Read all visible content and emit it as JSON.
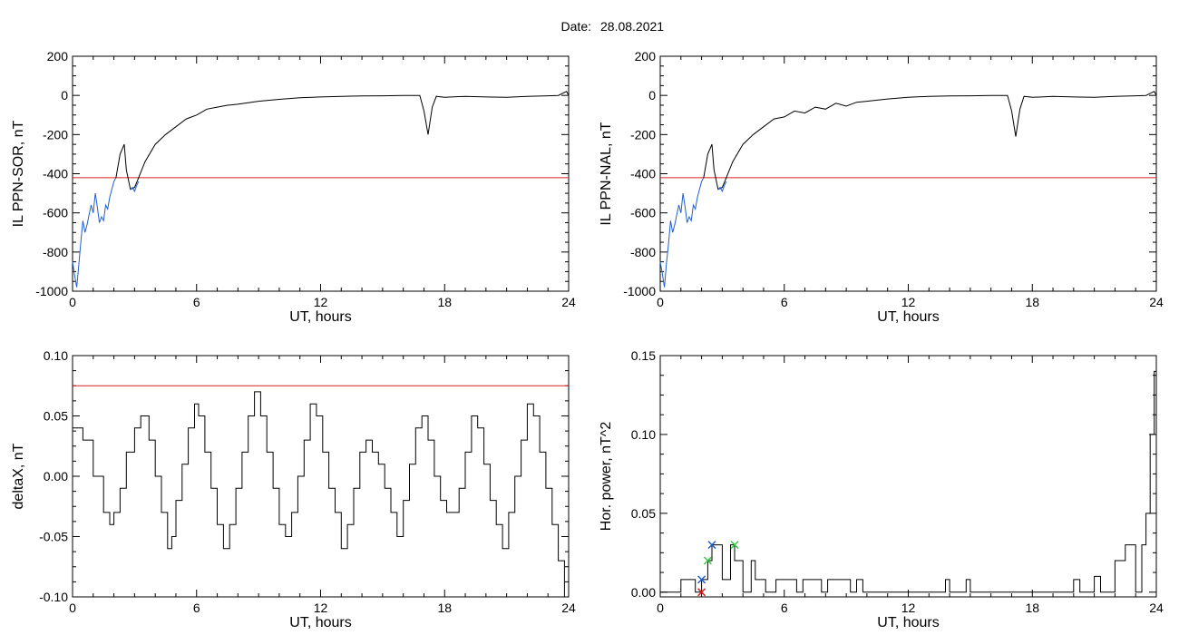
{
  "header": {
    "date_label": "Date:",
    "date_value": "28.08.2021"
  },
  "colors": {
    "trace": "#000000",
    "highlight": "#1f5fd0",
    "threshold": "#d62020",
    "marker_blue": "#1f5fd0",
    "marker_green": "#2ecc40",
    "marker_red": "#d62020"
  },
  "chart_data": [
    {
      "id": "sor",
      "type": "line",
      "ylabel": "IL PPN-SOR, nT",
      "xlabel": "UT, hours",
      "xlim": [
        0,
        24
      ],
      "ylim": [
        -1000,
        200
      ],
      "xticks": [
        0,
        6,
        12,
        18,
        24
      ],
      "yticks": [
        200,
        0,
        -200,
        -400,
        -600,
        -800,
        -1000
      ],
      "ytick_labels": [
        "200",
        "0",
        "-200",
        "-400",
        "-600",
        "-800",
        "-1000"
      ],
      "threshold": -420,
      "series": [
        {
          "color": "blue",
          "x": [
            0,
            0.1,
            0.2,
            0.3,
            0.4,
            0.5,
            0.6,
            0.7,
            0.8,
            0.9,
            1.0,
            1.1,
            1.2,
            1.3,
            1.4,
            1.5,
            1.6,
            1.7,
            1.8,
            1.9,
            2.0,
            2.1
          ],
          "y": [
            -850,
            -920,
            -980,
            -870,
            -750,
            -640,
            -700,
            -660,
            -610,
            -560,
            -600,
            -500,
            -570,
            -650,
            -620,
            -640,
            -560,
            -580,
            -520,
            -480,
            -440,
            -420
          ]
        },
        {
          "color": "black",
          "x": [
            2.1,
            2.3,
            2.5,
            2.6,
            2.8,
            3.0,
            3.2,
            3.5,
            4.0,
            4.5,
            5.0,
            5.5,
            6.0,
            6.5,
            7.0,
            7.5,
            8.0,
            9.0,
            10.0,
            11.0,
            12.0,
            13.0,
            14.0,
            15.0,
            16.0,
            16.8,
            17.0,
            17.2,
            17.4,
            17.6,
            18.0,
            19.0,
            20.0,
            21.0,
            22.0,
            23.0,
            23.5,
            23.9,
            24.0
          ],
          "y": [
            -420,
            -300,
            -250,
            -380,
            -480,
            -470,
            -420,
            -340,
            -250,
            -200,
            -160,
            -120,
            -100,
            -70,
            -60,
            -50,
            -45,
            -30,
            -20,
            -12,
            -8,
            -5,
            -3,
            -2,
            0,
            0,
            -80,
            -200,
            -60,
            -5,
            -10,
            -5,
            -8,
            -10,
            -5,
            -2,
            0,
            20,
            0
          ]
        },
        {
          "color": "blue",
          "x": [
            2.8,
            2.9,
            3.0,
            3.1,
            3.2
          ],
          "y": [
            -480,
            -470,
            -490,
            -460,
            -440
          ]
        }
      ]
    },
    {
      "id": "nal",
      "type": "line",
      "ylabel": "IL PPN-NAL, nT",
      "xlabel": "UT, hours",
      "xlim": [
        0,
        24
      ],
      "ylim": [
        -1000,
        200
      ],
      "xticks": [
        0,
        6,
        12,
        18,
        24
      ],
      "yticks": [
        200,
        0,
        -200,
        -400,
        -600,
        -800,
        -1000
      ],
      "ytick_labels": [
        "200",
        "0",
        "-200",
        "-400",
        "-600",
        "-800",
        "-1000"
      ],
      "threshold": -420,
      "series": [
        {
          "color": "blue",
          "x": [
            0,
            0.1,
            0.2,
            0.3,
            0.4,
            0.5,
            0.6,
            0.7,
            0.8,
            0.9,
            1.0,
            1.1,
            1.2,
            1.3,
            1.4,
            1.5,
            1.6,
            1.7,
            1.8,
            1.9,
            2.0,
            2.1
          ],
          "y": [
            -850,
            -910,
            -980,
            -860,
            -760,
            -640,
            -700,
            -660,
            -610,
            -560,
            -600,
            -500,
            -570,
            -650,
            -620,
            -640,
            -560,
            -580,
            -520,
            -480,
            -440,
            -420
          ]
        },
        {
          "color": "black",
          "x": [
            2.1,
            2.3,
            2.5,
            2.6,
            2.8,
            3.0,
            3.2,
            3.5,
            4.0,
            4.5,
            5.0,
            5.5,
            6.0,
            6.5,
            7.0,
            7.5,
            8.0,
            8.5,
            9.0,
            9.5,
            10.0,
            11.0,
            12.0,
            13.0,
            14.0,
            15.0,
            16.0,
            16.8,
            17.0,
            17.2,
            17.4,
            17.6,
            18.0,
            19.0,
            20.0,
            21.0,
            22.0,
            23.0,
            23.5,
            23.9,
            24.0
          ],
          "y": [
            -420,
            -300,
            -250,
            -380,
            -480,
            -470,
            -420,
            -340,
            -250,
            -200,
            -160,
            -120,
            -110,
            -80,
            -90,
            -60,
            -70,
            -40,
            -55,
            -35,
            -30,
            -18,
            -10,
            -5,
            -3,
            -2,
            0,
            0,
            -80,
            -210,
            -70,
            -5,
            -10,
            -5,
            -8,
            -10,
            -5,
            -2,
            0,
            20,
            0
          ]
        },
        {
          "color": "blue",
          "x": [
            2.8,
            2.9,
            3.0,
            3.1,
            3.2
          ],
          "y": [
            -480,
            -470,
            -490,
            -460,
            -440
          ]
        }
      ]
    },
    {
      "id": "deltax",
      "type": "line",
      "ylabel": "deltaX, nT",
      "xlabel": "UT, hours",
      "xlim": [
        0,
        24
      ],
      "ylim": [
        -0.1,
        0.1
      ],
      "xticks": [
        0,
        6,
        12,
        18,
        24
      ],
      "yticks": [
        0.1,
        0.05,
        0.0,
        -0.05,
        -0.1
      ],
      "ytick_labels": [
        "0.10",
        "0.05",
        "0.00",
        "-0.05",
        "-0.10"
      ],
      "threshold": 0.075,
      "series": [
        {
          "color": "black",
          "step": true,
          "x": [
            0,
            0.5,
            1.0,
            1.5,
            1.8,
            2.0,
            2.3,
            2.6,
            3.0,
            3.3,
            3.7,
            4.0,
            4.3,
            4.6,
            4.8,
            5.0,
            5.3,
            5.6,
            5.9,
            6.1,
            6.4,
            6.7,
            7.0,
            7.3,
            7.6,
            7.9,
            8.2,
            8.5,
            8.8,
            9.1,
            9.4,
            9.7,
            10.0,
            10.3,
            10.6,
            10.9,
            11.2,
            11.5,
            11.8,
            12.1,
            12.4,
            12.7,
            13.0,
            13.3,
            13.6,
            13.9,
            14.2,
            14.5,
            14.8,
            15.1,
            15.4,
            15.7,
            16.0,
            16.3,
            16.6,
            16.9,
            17.2,
            17.5,
            17.8,
            18.1,
            18.4,
            18.7,
            19.0,
            19.3,
            19.6,
            19.9,
            20.2,
            20.5,
            20.8,
            21.1,
            21.4,
            21.7,
            22.0,
            22.3,
            22.6,
            22.9,
            23.2,
            23.5,
            23.8,
            24.0
          ],
          "y": [
            0.04,
            0.03,
            0.0,
            -0.03,
            -0.04,
            -0.03,
            -0.01,
            0.02,
            0.04,
            0.05,
            0.03,
            0.0,
            -0.03,
            -0.06,
            -0.05,
            -0.02,
            0.01,
            0.04,
            0.06,
            0.05,
            0.02,
            -0.01,
            -0.04,
            -0.06,
            -0.04,
            -0.01,
            0.02,
            0.05,
            0.07,
            0.05,
            0.02,
            -0.01,
            -0.04,
            -0.05,
            -0.03,
            0.0,
            0.03,
            0.06,
            0.05,
            0.02,
            -0.01,
            -0.03,
            -0.06,
            -0.04,
            -0.01,
            0.02,
            0.03,
            0.02,
            0.01,
            -0.01,
            -0.03,
            -0.05,
            -0.02,
            0.01,
            0.04,
            0.05,
            0.03,
            0.0,
            -0.02,
            -0.03,
            -0.03,
            -0.01,
            0.02,
            0.05,
            0.04,
            0.01,
            -0.02,
            -0.04,
            -0.06,
            -0.03,
            0.0,
            0.03,
            0.06,
            0.05,
            0.02,
            -0.01,
            -0.04,
            -0.07,
            -0.1,
            -0.1
          ]
        }
      ]
    },
    {
      "id": "power",
      "type": "line",
      "ylabel": "Hor. power, nT^2",
      "xlabel": "UT, hours",
      "xlim": [
        0,
        24
      ],
      "ylim": [
        -0.003,
        0.15
      ],
      "xticks": [
        0,
        6,
        12,
        18,
        24
      ],
      "yticks": [
        0.15,
        0.1,
        0.05,
        0.0
      ],
      "ytick_labels": [
        "0.15",
        "0.10",
        "0.05",
        "0.00"
      ],
      "series": [
        {
          "color": "black",
          "step": true,
          "x": [
            0,
            0.8,
            1.0,
            1.7,
            2.0,
            2.3,
            2.5,
            3.0,
            3.4,
            3.6,
            4.0,
            4.4,
            4.6,
            5.1,
            5.6,
            6.6,
            6.9,
            7.8,
            8.1,
            9.2,
            9.5,
            9.8,
            10.1,
            13.8,
            14.0,
            14.8,
            15.0,
            20.0,
            20.3,
            21.0,
            21.3,
            22.0,
            22.5,
            23.0,
            23.3,
            23.5,
            23.7,
            23.9,
            24.0
          ],
          "y": [
            0.0,
            0.0,
            0.008,
            0.0,
            0.008,
            0.02,
            0.03,
            0.008,
            0.03,
            0.02,
            0.0,
            0.02,
            0.008,
            0.0,
            0.008,
            0.0,
            0.008,
            0.0,
            0.008,
            0.0,
            0.008,
            0.0,
            0.0,
            0.008,
            0.0,
            0.008,
            0.0,
            0.008,
            0.0,
            0.01,
            0.0,
            0.02,
            0.03,
            0.0,
            0.03,
            0.05,
            0.1,
            0.14,
            0.14
          ]
        }
      ],
      "markers": [
        {
          "x": 2.0,
          "y": 0.008,
          "color": "blue"
        },
        {
          "x": 2.0,
          "y": 0.0,
          "color": "red"
        },
        {
          "x": 2.3,
          "y": 0.02,
          "color": "green"
        },
        {
          "x": 2.5,
          "y": 0.03,
          "color": "blue"
        },
        {
          "x": 3.6,
          "y": 0.03,
          "color": "green"
        }
      ]
    }
  ]
}
